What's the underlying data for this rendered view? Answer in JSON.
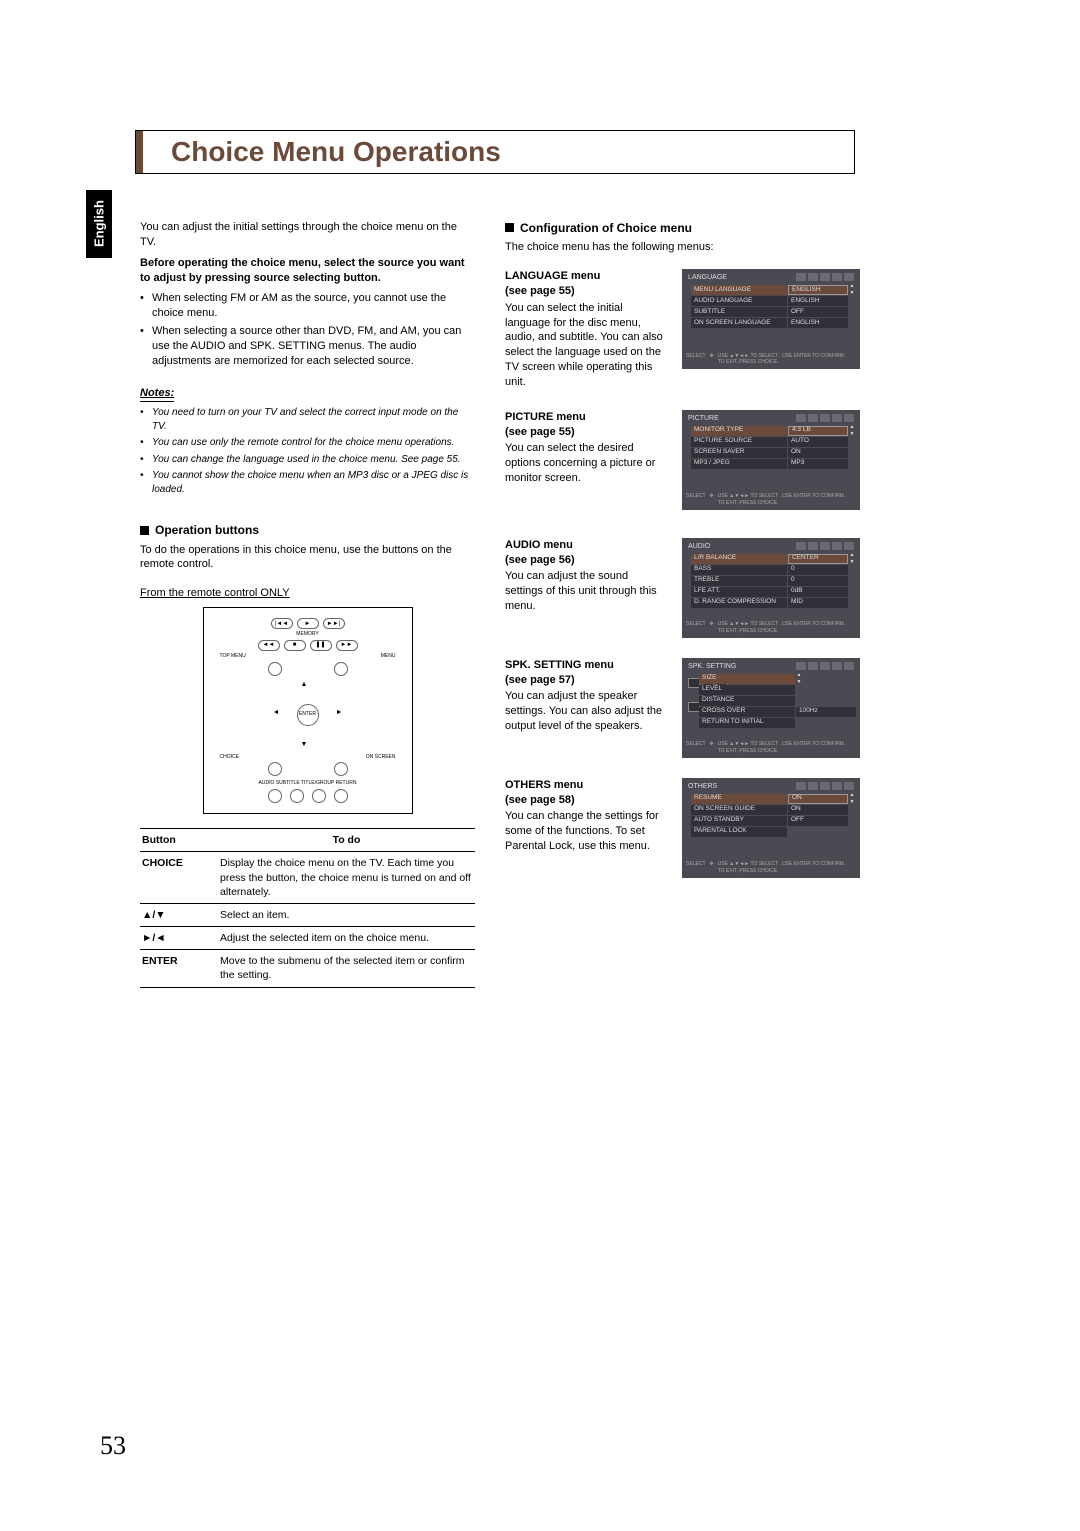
{
  "page": {
    "title": "Choice Menu Operations",
    "language_tab": "English",
    "page_number": "53"
  },
  "left_col": {
    "intro": "You can adjust the initial settings through the choice menu on the TV.",
    "before": "Before operating the choice menu, select the source you want to adjust by pressing source selecting button.",
    "bullets": [
      "When selecting FM or AM as the source, you cannot use the choice menu.",
      "When selecting a source other than DVD, FM, and AM, you can use the AUDIO and SPK. SETTING menus. The audio adjustments are memorized for each selected source."
    ],
    "notes_header": "Notes:",
    "notes": [
      "You need to turn on your TV and select the correct input mode on the TV.",
      "You can use only the remote control for the choice menu operations.",
      "You can change the language used in the choice menu. See page 55.",
      "You cannot show the choice menu when an MP3 disc or a JPEG disc is loaded."
    ],
    "op_buttons_header": "Operation buttons",
    "op_buttons_text": "To do the operations in this choice menu, use the buttons on the remote control.",
    "remote_header": "From the remote control ONLY",
    "remote": {
      "memory": "MEMORY",
      "top_menu": "TOP MENU",
      "menu": "MENU",
      "enter": "ENTER",
      "choice": "CHOICE",
      "on_screen": "ON SCREEN",
      "bottom_labels": "AUDIO   SUBTITLE TITLE/GROUP RETURN"
    },
    "table": {
      "h1": "Button",
      "h2": "To do",
      "rows": [
        {
          "b": "CHOICE",
          "d": "Display the choice menu on the TV. Each time you press the button, the choice menu is turned on and off alternately."
        },
        {
          "b": "▲/▼",
          "d": "Select an item."
        },
        {
          "b": "►/◄",
          "d": "Adjust the selected item on the choice menu."
        },
        {
          "b": "ENTER",
          "d": "Move to the submenu of the selected item or confirm the setting."
        }
      ]
    }
  },
  "right_col": {
    "config_header": "Configuration of Choice menu",
    "config_text": "The choice menu has the following menus:",
    "menus": [
      {
        "title": "LANGUAGE menu",
        "see": "(see page 55)",
        "desc": "You can select the initial language for the disc menu, audio, and subtitle. You can also select the language used on the TV screen while operating this unit.",
        "osd_title": "LANGUAGE",
        "rows": [
          {
            "l": "MENU LANGUAGE",
            "v": "ENGLISH",
            "sel": true
          },
          {
            "l": "AUDIO LANGUAGE",
            "v": "ENGLISH"
          },
          {
            "l": "SUBTITLE",
            "v": "OFF"
          },
          {
            "l": "ON SCREEN LANGUAGE",
            "v": "ENGLISH"
          }
        ]
      },
      {
        "title": "PICTURE menu",
        "see": "(see page 55)",
        "desc": "You can select the desired options concerning a picture or monitor screen.",
        "osd_title": "PICTURE",
        "rows": [
          {
            "l": "MONITOR TYPE",
            "v": "4:3 LB",
            "sel": true
          },
          {
            "l": "PICTURE SOURCE",
            "v": "AUTO"
          },
          {
            "l": "SCREEN SAVER",
            "v": "ON"
          },
          {
            "l": "MP3 / JPEG",
            "v": "MP3"
          }
        ]
      },
      {
        "title": "AUDIO menu",
        "see": "(see page 56)",
        "desc": "You can adjust the sound settings of this unit through this menu.",
        "osd_title": "AUDIO",
        "rows": [
          {
            "l": "L/R BALANCE",
            "v": "CENTER",
            "sel": true
          },
          {
            "l": "BASS",
            "v": "0"
          },
          {
            "l": "TREBLE",
            "v": "0"
          },
          {
            "l": "LFE ATT.",
            "v": "0dB"
          },
          {
            "l": "D. RANGE COMPRESSION",
            "v": "MID"
          }
        ]
      },
      {
        "title": "SPK. SETTING menu",
        "see": "(see page 57)",
        "desc": "You can adjust the speaker settings. You can also adjust the output level of the speakers.",
        "osd_title": "SPK. SETTING",
        "spk": true,
        "rows": [
          {
            "l": "SIZE",
            "v": "",
            "sel": true
          },
          {
            "l": "LEVEL",
            "v": ""
          },
          {
            "l": "DISTANCE",
            "v": ""
          },
          {
            "l": "CROSS OVER",
            "v": "100Hz"
          },
          {
            "l": "RETURN TO INITIAL",
            "v": ""
          }
        ]
      },
      {
        "title": "OTHERS menu",
        "see": "(see page 58)",
        "desc": "You can change the settings for some of the functions. To set Parental Lock, use this menu.",
        "osd_title": "OTHERS",
        "rows": [
          {
            "l": "RESUME",
            "v": "ON",
            "sel": true
          },
          {
            "l": "ON SCREEN GUIDE",
            "v": "ON"
          },
          {
            "l": "AUTO STANDBY",
            "v": "OFF"
          },
          {
            "l": "PARENTAL LOCK",
            "v": ""
          }
        ]
      }
    ],
    "osd_footer": {
      "a": "SELECT",
      "b": "ENTER",
      "c": "USE ▲▼◄► TO SELECT . USE ENTER TO CONFIRM.",
      "d": "TO EXIT, PRESS CHOICE."
    }
  }
}
